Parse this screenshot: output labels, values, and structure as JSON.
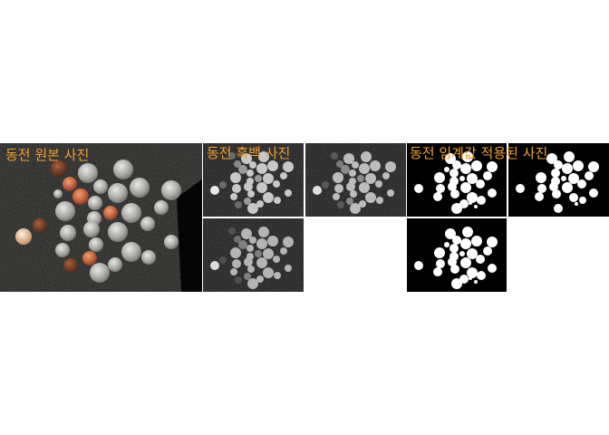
{
  "captions": {
    "original": "동전 원본 사진",
    "gray": "동전 흑백 사진",
    "threshold": "동전 임계값 적용된 사진"
  },
  "colors": {
    "caption": "#f0a030",
    "background": "#000000",
    "page": "#ffffff"
  }
}
